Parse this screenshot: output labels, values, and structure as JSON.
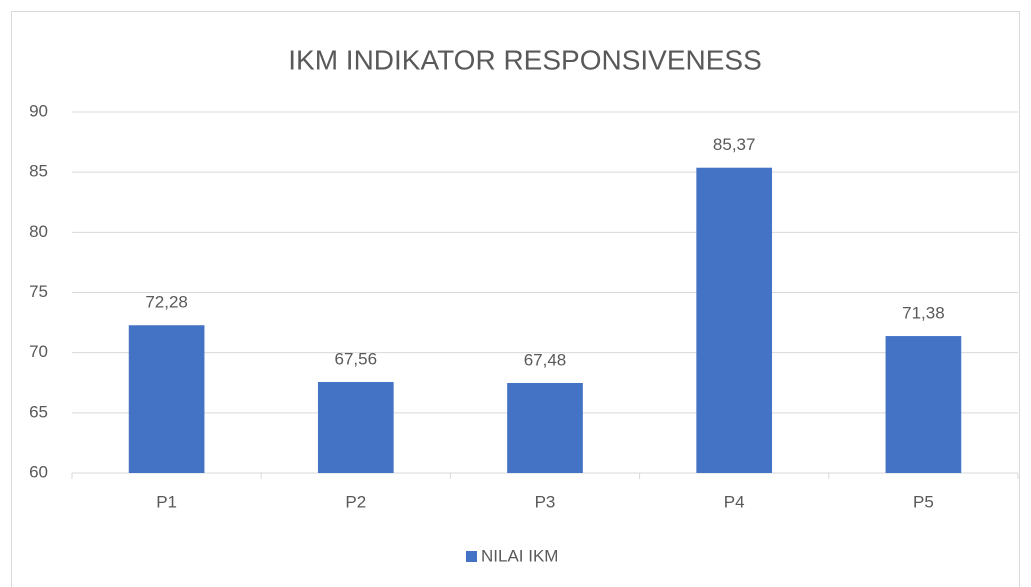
{
  "chart_data": {
    "type": "bar",
    "title": "IKM INDIKATOR RESPONSIVENESS",
    "categories": [
      "P1",
      "P2",
      "P3",
      "P4",
      "P5"
    ],
    "series": [
      {
        "name": "NILAI IKM",
        "color": "#4472c4",
        "values": [
          72.28,
          67.56,
          67.48,
          85.37,
          71.38
        ],
        "value_labels": [
          "72,28",
          "67,56",
          "67,48",
          "85,37",
          "71,38"
        ]
      }
    ],
    "ylim": [
      60,
      90
    ],
    "yticks": [
      60,
      65,
      70,
      75,
      80,
      85,
      90
    ],
    "grid": true,
    "legend": "bottom"
  }
}
